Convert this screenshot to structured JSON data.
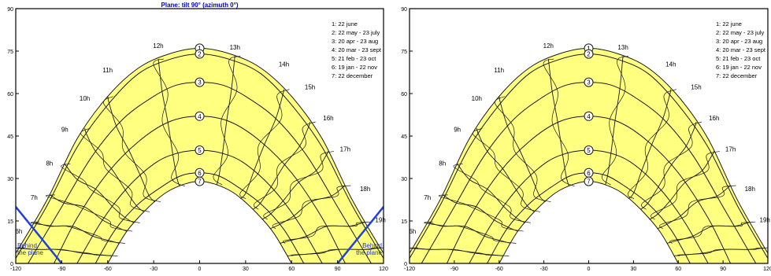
{
  "chart_data": [
    {
      "type": "line",
      "title": "Plane: tilt 90° (azimuth 0°)",
      "xlabel": "",
      "ylabel": "",
      "xlim": [
        -120,
        120
      ],
      "ylim": [
        0,
        90
      ],
      "x_ticks": [
        "-120",
        "-90",
        "-60",
        "-30",
        "0",
        "30",
        "60",
        "90",
        "120"
      ],
      "y_ticks": [
        "0",
        "15",
        "30",
        "45",
        "60",
        "75",
        "90"
      ],
      "grid": false,
      "legend_position": "top-right",
      "legend": [
        "1: 22 june",
        "2: 22 may - 23 july",
        "3: 20 apr - 23 aug",
        "4: 20 mar - 23 sept",
        "5: 21 feb - 23 oct",
        "6: 19 jan - 22 nov",
        "7: 22 december"
      ],
      "series": [
        {
          "name": "1",
          "label": "1",
          "peak": 76,
          "x": [
            -124,
            -100,
            -80,
            -60,
            -40,
            -20,
            0,
            20,
            40,
            60,
            80,
            100,
            124
          ],
          "y": [
            0,
            22,
            44,
            59,
            69,
            74,
            76,
            74,
            69,
            59,
            44,
            22,
            0
          ]
        },
        {
          "name": "2",
          "label": "2",
          "peak": 74,
          "x": [
            -122,
            -100,
            -80,
            -60,
            -40,
            -20,
            0,
            20,
            40,
            60,
            80,
            100,
            122
          ],
          "y": [
            0,
            20,
            41,
            56,
            67,
            72,
            74,
            72,
            67,
            56,
            41,
            20,
            0
          ]
        },
        {
          "name": "3",
          "label": "3",
          "peak": 64,
          "x": [
            -112,
            -90,
            -70,
            -50,
            -30,
            -15,
            0,
            15,
            30,
            50,
            70,
            90,
            112
          ],
          "y": [
            0,
            20,
            38,
            51,
            59,
            63,
            64,
            63,
            59,
            51,
            38,
            20,
            0
          ]
        },
        {
          "name": "4",
          "label": "4",
          "peak": 52,
          "x": [
            -95,
            -80,
            -60,
            -40,
            -20,
            0,
            20,
            40,
            60,
            80,
            95
          ],
          "y": [
            0,
            16,
            32,
            43,
            50,
            52,
            50,
            43,
            32,
            16,
            0
          ]
        },
        {
          "name": "5",
          "label": "5",
          "peak": 40,
          "x": [
            -80,
            -65,
            -50,
            -35,
            -20,
            0,
            20,
            35,
            50,
            65,
            80
          ],
          "y": [
            0,
            14,
            25,
            33,
            38,
            40,
            38,
            33,
            25,
            14,
            0
          ]
        },
        {
          "name": "6",
          "label": "6",
          "peak": 32,
          "x": [
            -68,
            -55,
            -40,
            -25,
            -12,
            0,
            12,
            25,
            40,
            55,
            68
          ],
          "y": [
            0,
            12,
            21,
            27,
            31,
            32,
            31,
            27,
            21,
            12,
            0
          ]
        },
        {
          "name": "7",
          "label": "7",
          "peak": 29,
          "x": [
            -60,
            -48,
            -35,
            -22,
            -10,
            0,
            10,
            22,
            35,
            48,
            60
          ],
          "y": [
            0,
            11,
            19,
            25,
            28,
            29,
            28,
            25,
            19,
            11,
            0
          ]
        }
      ],
      "hour_labels": [
        {
          "text": "6h",
          "x": -118,
          "y": 10
        },
        {
          "text": "7h",
          "x": -108,
          "y": 22
        },
        {
          "text": "8h",
          "x": -98,
          "y": 34
        },
        {
          "text": "9h",
          "x": -88,
          "y": 46
        },
        {
          "text": "10h",
          "x": -75,
          "y": 57
        },
        {
          "text": "11h",
          "x": -60,
          "y": 67
        },
        {
          "text": "12h",
          "x": -27,
          "y": 75.5
        },
        {
          "text": "13h",
          "x": 23,
          "y": 75
        },
        {
          "text": "14h",
          "x": 55,
          "y": 69
        },
        {
          "text": "15h",
          "x": 72,
          "y": 61
        },
        {
          "text": "16h",
          "x": 84,
          "y": 50
        },
        {
          "text": "17h",
          "x": 95,
          "y": 39
        },
        {
          "text": "18h",
          "x": 108,
          "y": 25
        },
        {
          "text": "19h",
          "x": 118,
          "y": 14
        }
      ],
      "plane_boundary": {
        "label": "Behind the plane",
        "left": {
          "x": [
            -120,
            -90
          ],
          "y": [
            20,
            0
          ]
        },
        "right": {
          "x": [
            90,
            120
          ],
          "y": [
            0,
            20
          ]
        }
      }
    },
    {
      "type": "line",
      "xlabel": "",
      "ylabel": "",
      "xlim": [
        -120,
        120
      ],
      "ylim": [
        0,
        90
      ],
      "x_ticks": [
        "-120",
        "-90",
        "-60",
        "-30",
        "0",
        "30",
        "60",
        "90",
        "120"
      ],
      "y_ticks": [
        "0",
        "15",
        "30",
        "45",
        "60",
        "75",
        "90"
      ],
      "grid": false,
      "legend_position": "top-right",
      "legend": [
        "1: 22 june",
        "2: 22 may - 23 july",
        "3: 20 apr - 23 aug",
        "4: 20 mar - 23 sept",
        "5: 21 feb - 23 oct",
        "6: 19 jan - 22 nov",
        "7: 22 december"
      ],
      "series": [
        {
          "name": "1",
          "label": "1",
          "peak": 76,
          "x": [
            -124,
            -100,
            -80,
            -60,
            -40,
            -20,
            0,
            20,
            40,
            60,
            80,
            100,
            124
          ],
          "y": [
            0,
            22,
            44,
            59,
            69,
            74,
            76,
            74,
            69,
            59,
            44,
            22,
            0
          ]
        },
        {
          "name": "2",
          "label": "2",
          "peak": 74,
          "x": [
            -122,
            -100,
            -80,
            -60,
            -40,
            -20,
            0,
            20,
            40,
            60,
            80,
            100,
            122
          ],
          "y": [
            0,
            20,
            41,
            56,
            67,
            72,
            74,
            72,
            67,
            56,
            41,
            20,
            0
          ]
        },
        {
          "name": "3",
          "label": "3",
          "peak": 64,
          "x": [
            -112,
            -90,
            -70,
            -50,
            -30,
            -15,
            0,
            15,
            30,
            50,
            70,
            90,
            112
          ],
          "y": [
            0,
            20,
            38,
            51,
            59,
            63,
            64,
            63,
            59,
            51,
            38,
            20,
            0
          ]
        },
        {
          "name": "4",
          "label": "4",
          "peak": 52,
          "x": [
            -95,
            -80,
            -60,
            -40,
            -20,
            0,
            20,
            40,
            60,
            80,
            95
          ],
          "y": [
            0,
            16,
            32,
            43,
            50,
            52,
            50,
            43,
            32,
            16,
            0
          ]
        },
        {
          "name": "5",
          "label": "5",
          "peak": 40,
          "x": [
            -80,
            -65,
            -50,
            -35,
            -20,
            0,
            20,
            35,
            50,
            65,
            80
          ],
          "y": [
            0,
            14,
            25,
            33,
            38,
            40,
            38,
            33,
            25,
            14,
            0
          ]
        },
        {
          "name": "6",
          "label": "6",
          "peak": 32,
          "x": [
            -68,
            -55,
            -40,
            -25,
            -12,
            0,
            12,
            25,
            40,
            55,
            68
          ],
          "y": [
            0,
            12,
            21,
            27,
            31,
            32,
            31,
            27,
            21,
            12,
            0
          ]
        },
        {
          "name": "7",
          "label": "7",
          "peak": 29,
          "x": [
            -60,
            -48,
            -35,
            -22,
            -10,
            0,
            10,
            22,
            35,
            48,
            60
          ],
          "y": [
            0,
            11,
            19,
            25,
            28,
            29,
            28,
            25,
            19,
            11,
            0
          ]
        }
      ],
      "hour_labels": [
        {
          "text": "6h",
          "x": -118,
          "y": 10
        },
        {
          "text": "7h",
          "x": -108,
          "y": 22
        },
        {
          "text": "8h",
          "x": -98,
          "y": 34
        },
        {
          "text": "9h",
          "x": -88,
          "y": 46
        },
        {
          "text": "10h",
          "x": -75,
          "y": 57
        },
        {
          "text": "11h",
          "x": -60,
          "y": 67
        },
        {
          "text": "12h",
          "x": -27,
          "y": 75.5
        },
        {
          "text": "13h",
          "x": 23,
          "y": 75
        },
        {
          "text": "14h",
          "x": 55,
          "y": 69
        },
        {
          "text": "15h",
          "x": 72,
          "y": 61
        },
        {
          "text": "16h",
          "x": 84,
          "y": 50
        },
        {
          "text": "17h",
          "x": 95,
          "y": 39
        },
        {
          "text": "18h",
          "x": 108,
          "y": 25
        },
        {
          "text": "19h",
          "x": 118,
          "y": 14
        }
      ]
    }
  ],
  "colors": {
    "fill": "#ffff80",
    "stroke": "#1a1a1a",
    "axis": "#000000",
    "title": "#0000cc",
    "boundary": "#1f3fe0",
    "boundary_text": "#2233cc"
  }
}
